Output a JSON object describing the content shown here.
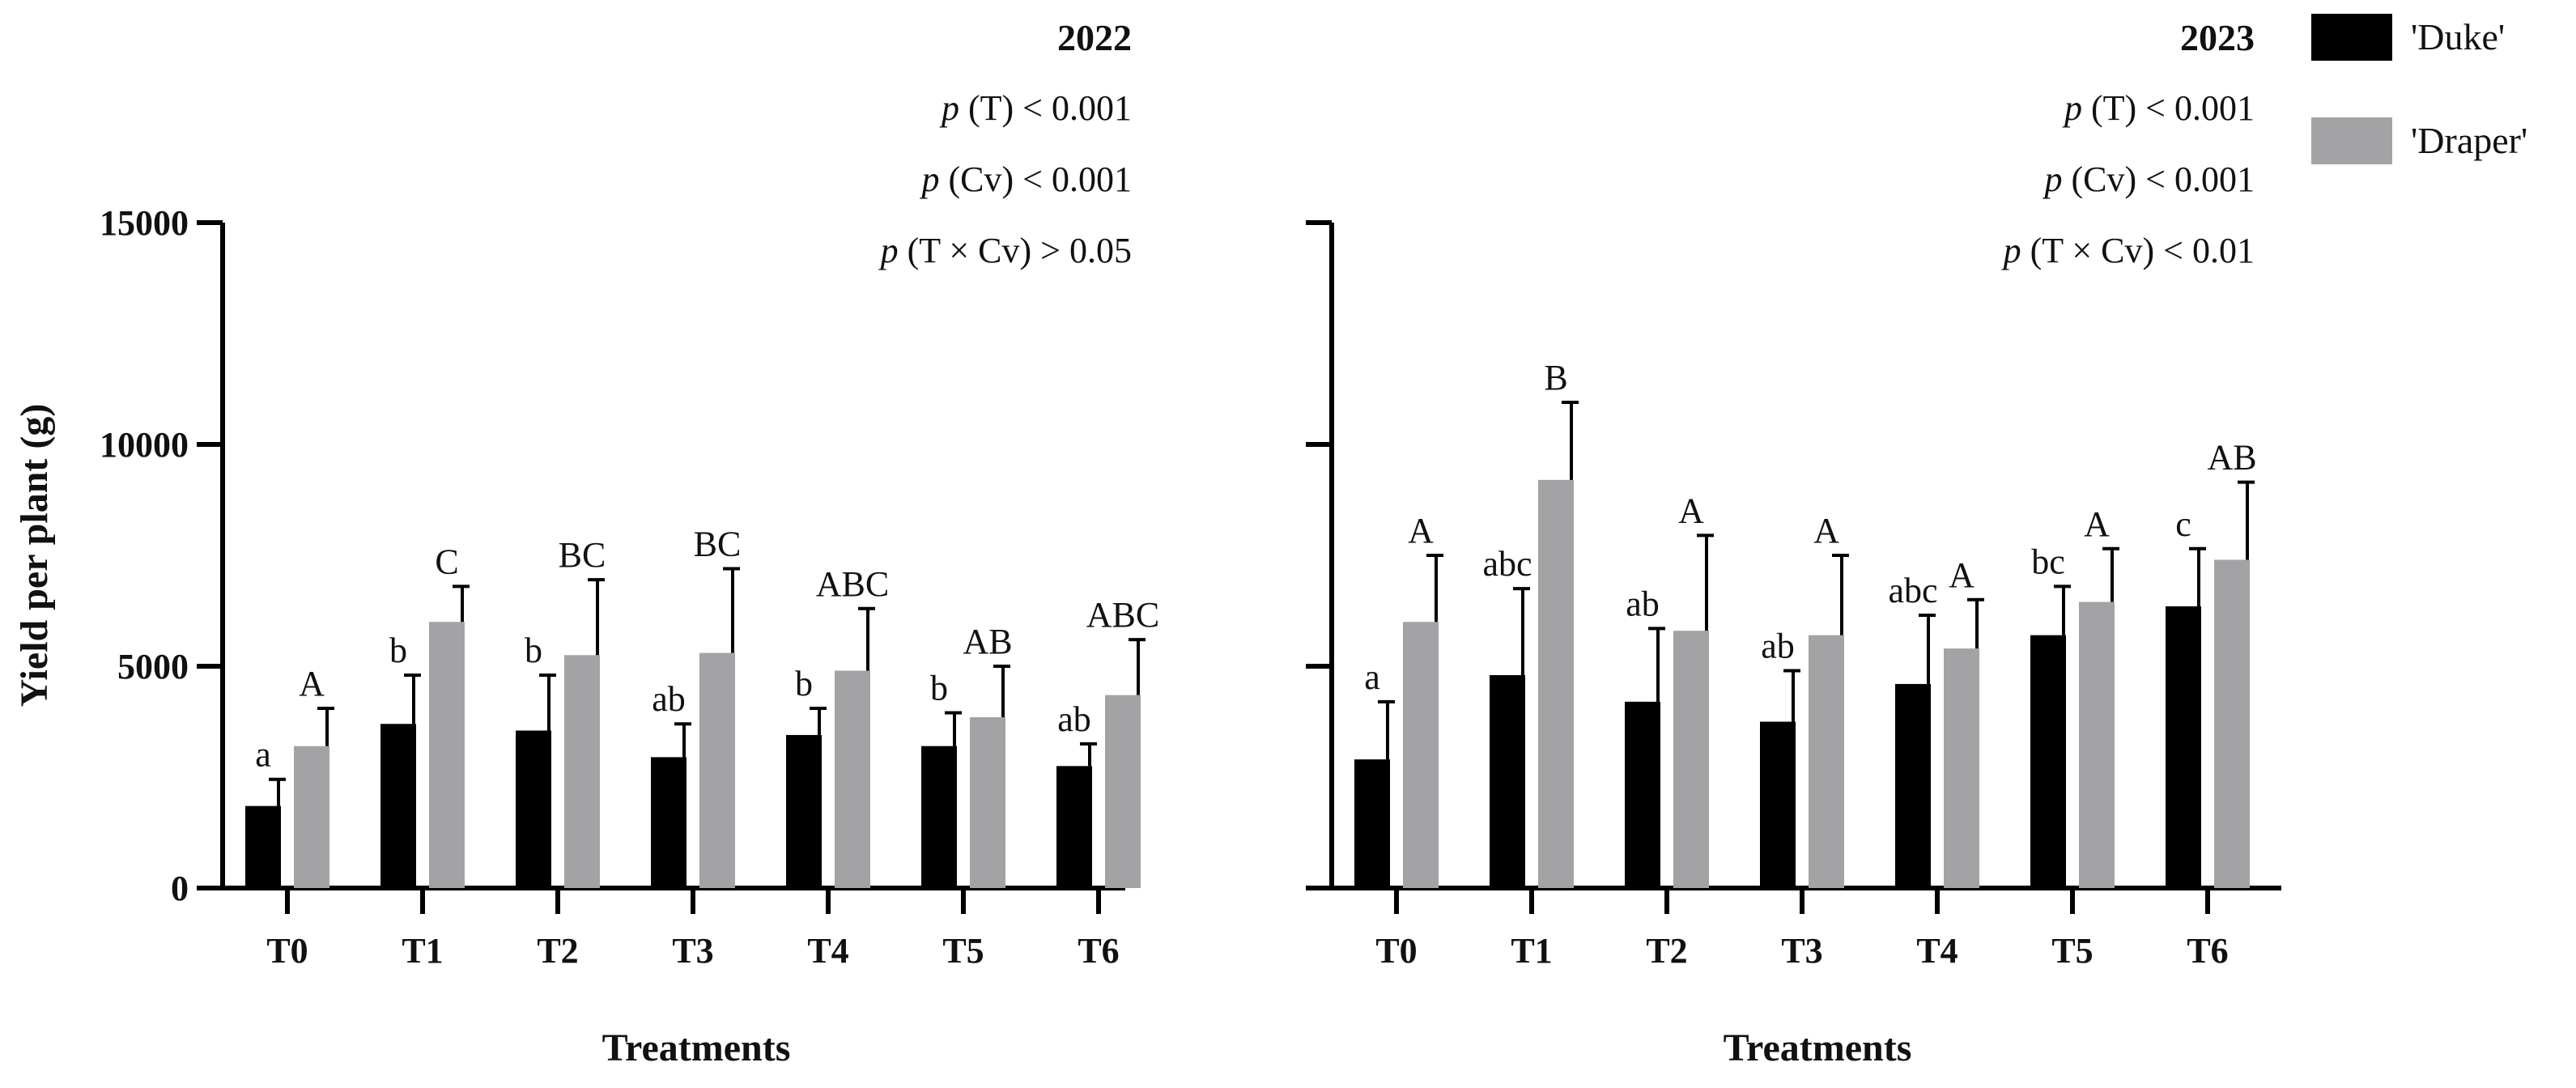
{
  "chart_data": [
    {
      "type": "bar",
      "panel_title": "2022",
      "stats": [
        "p (T) < 0.001",
        "p (Cv) < 0.001",
        "p (T × Cv) > 0.05"
      ],
      "categories": [
        "T0",
        "T1",
        "T2",
        "T3",
        "T4",
        "T5",
        "T6"
      ],
      "xlabel": "Treatments",
      "ylabel": "Yield per plant (g)",
      "ylim": [
        0,
        15000
      ],
      "yticks": [
        0,
        5000,
        10000,
        15000
      ],
      "series": [
        {
          "name": "'Duke'",
          "color": "#000000",
          "values": [
            1850,
            3700,
            3550,
            2950,
            3450,
            3200,
            2750
          ],
          "errors": [
            600,
            1100,
            1250,
            750,
            600,
            750,
            500
          ],
          "letters": [
            "a",
            "b",
            "b",
            "ab",
            "b",
            "b",
            "ab"
          ]
        },
        {
          "name": "'Draper'",
          "color": "#a3a3a6",
          "values": [
            3200,
            6000,
            5250,
            5300,
            4900,
            3850,
            4350
          ],
          "errors": [
            850,
            800,
            1700,
            1900,
            1400,
            1150,
            1250
          ],
          "letters": [
            "A",
            "C",
            "BC",
            "BC",
            "ABC",
            "AB",
            "ABC"
          ]
        }
      ]
    },
    {
      "type": "bar",
      "panel_title": "2023",
      "stats": [
        "p (T) < 0.001",
        "p (Cv) < 0.001",
        "p (T × Cv) < 0.01"
      ],
      "categories": [
        "T0",
        "T1",
        "T2",
        "T3",
        "T4",
        "T5",
        "T6"
      ],
      "xlabel": "Treatments",
      "ylabel": "",
      "ylim": [
        0,
        15000
      ],
      "yticks": [
        0,
        5000,
        10000,
        15000
      ],
      "series": [
        {
          "name": "'Duke'",
          "color": "#000000",
          "values": [
            2900,
            4800,
            4200,
            3750,
            4600,
            5700,
            6350
          ],
          "errors": [
            1300,
            1950,
            1650,
            1150,
            1550,
            1100,
            1300
          ],
          "letters": [
            "a",
            "abc",
            "ab",
            "ab",
            "abc",
            "bc",
            "c"
          ]
        },
        {
          "name": "'Draper'",
          "color": "#a3a3a6",
          "values": [
            6000,
            9200,
            5800,
            5700,
            5400,
            6450,
            7400
          ],
          "errors": [
            1500,
            1750,
            2150,
            1800,
            1100,
            1200,
            1750
          ],
          "letters": [
            "A",
            "B",
            "A",
            "A",
            "A",
            "A",
            "AB"
          ]
        }
      ]
    }
  ],
  "legend": {
    "items": [
      {
        "label": "'Duke'",
        "color": "#000000"
      },
      {
        "label": "'Draper'",
        "color": "#a3a3a6"
      }
    ]
  }
}
